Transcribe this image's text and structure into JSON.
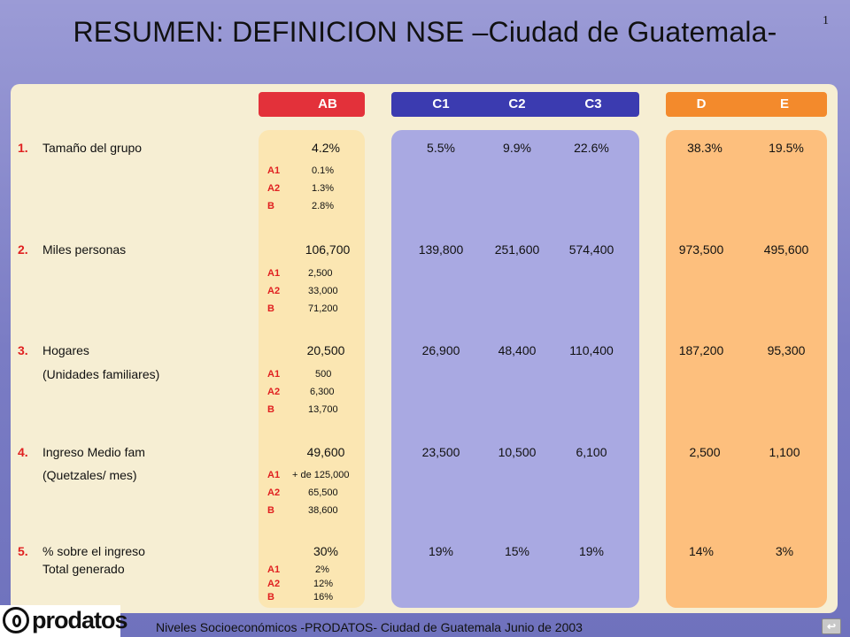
{
  "slide_number": "1",
  "title": "RESUMEN: DEFINICION NSE –Ciudad de Guatemala-",
  "headers": {
    "ab": "AB",
    "c1": "C1",
    "c2": "C2",
    "c3": "C3",
    "d": "D",
    "e": "E"
  },
  "rows": [
    {
      "num": "1.",
      "label": "Tamaño del grupo",
      "label2": "",
      "ab": "4.2%",
      "c1": "5.5%",
      "c2": "9.9%",
      "c3": "22.6%",
      "d": "38.3%",
      "e": "19.5%",
      "sub": [
        {
          "code": "A1",
          "value": "0.1%"
        },
        {
          "code": "A2",
          "value": "1.3%"
        },
        {
          "code": "B",
          "value": "2.8%"
        }
      ]
    },
    {
      "num": "2.",
      "label": "Miles personas",
      "label2": "",
      "ab": "106,700",
      "c1": "139,800",
      "c2": "251,600",
      "c3": "574,400",
      "d": "973,500",
      "e": "495,600",
      "sub": [
        {
          "code": "A1",
          "value": "2,500"
        },
        {
          "code": "A2",
          "value": "33,000"
        },
        {
          "code": "B",
          "value": "71,200"
        }
      ]
    },
    {
      "num": "3.",
      "label": "Hogares",
      "label2": "(Unidades familiares)",
      "ab": "20,500",
      "c1": "26,900",
      "c2": "48,400",
      "c3": "110,400",
      "d": "187,200",
      "e": "95,300",
      "sub": [
        {
          "code": "A1",
          "value": "500"
        },
        {
          "code": "A2",
          "value": "6,300"
        },
        {
          "code": "B",
          "value": "13,700"
        }
      ]
    },
    {
      "num": "4.",
      "label": "Ingreso Medio fam",
      "label2": "(Quetzales/ mes)",
      "ab": "49,600",
      "c1": "23,500",
      "c2": "10,500",
      "c3": "6,100",
      "d": "2,500",
      "e": "1,100",
      "sub": [
        {
          "code": "A1",
          "value": "+ de 125,000"
        },
        {
          "code": "A2",
          "value": "65,500"
        },
        {
          "code": "B",
          "value": "38,600"
        }
      ]
    },
    {
      "num": "5.",
      "label": "% sobre el ingreso",
      "label2": "Total generado",
      "ab": "30%",
      "c1": "19%",
      "c2": "15%",
      "c3": "19%",
      "d": "14%",
      "e": "3%",
      "sub": [
        {
          "code": "A1",
          "value": "2%"
        },
        {
          "code": "A2",
          "value": "12%"
        },
        {
          "code": "B",
          "value": "16%"
        }
      ]
    }
  ],
  "footer": {
    "logo_text": "prodatos",
    "text": "Niveles Socioeconómicos -PRODATOS- Ciudad de Guatemala Junio de 2003",
    "nav_icon": "return-icon"
  }
}
